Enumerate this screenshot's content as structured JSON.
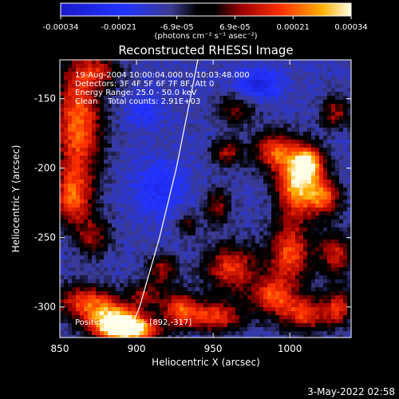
{
  "chart_data": {
    "type": "heatmap",
    "title": "Reconstructed RHESSI Image",
    "xlabel": "Heliocentric X (arcsec)",
    "ylabel": "Heliocentric Y (arcsec)",
    "xlim": [
      850,
      1040
    ],
    "ylim": [
      -322,
      -122
    ],
    "xticks": [
      850,
      900,
      950,
      1000
    ],
    "yticks": [
      -300,
      -250,
      -200,
      -150
    ],
    "colorbar": {
      "ticks": [
        "-0.00034",
        "-0.00021",
        "-6.9e-05",
        "6.9e-05",
        "0.00021",
        "0.00034"
      ],
      "unit_label": "(photons cm⁻² s⁻¹ asec⁻²)",
      "min": -0.00034,
      "max": 0.00034
    },
    "annotations": [
      "19-Aug-2004 10:00:04.000 to 10:03:48.000",
      "Detectors: 3F 4F 5F 6F 7F 8F, Att 0",
      "Energy Range: 25.0 - 50.0 keV",
      "Clean    Total counts: 2.91E+03"
    ],
    "peak_label": "Position of Peak = [892,-317]",
    "peak": [
      892,
      -317
    ],
    "limb_curve": [
      [
        894,
        -322
      ],
      [
        902,
        -300
      ],
      [
        915,
        -250
      ],
      [
        926,
        -200
      ],
      [
        935,
        -150
      ],
      [
        940,
        -122
      ]
    ],
    "sources": [
      {
        "x": 862,
        "y": -168,
        "sx": 11,
        "sy": 32,
        "a": 1.0
      },
      {
        "x": 858,
        "y": -222,
        "sx": 9,
        "sy": 14,
        "a": 0.75
      },
      {
        "x": 872,
        "y": -250,
        "sx": 8,
        "sy": 10,
        "a": 0.55
      },
      {
        "x": 866,
        "y": -296,
        "sx": 14,
        "sy": 9,
        "a": 0.8
      },
      {
        "x": 893,
        "y": -316,
        "sx": 14,
        "sy": 7,
        "a": 1.6
      },
      {
        "x": 884,
        "y": -306,
        "sx": 12,
        "sy": 8,
        "a": 0.8
      },
      {
        "x": 906,
        "y": -292,
        "sx": 8,
        "sy": 7,
        "a": 0.55
      },
      {
        "x": 917,
        "y": -273,
        "sx": 7,
        "sy": 8,
        "a": 0.6
      },
      {
        "x": 928,
        "y": -301,
        "sx": 8,
        "sy": 9,
        "a": 0.75
      },
      {
        "x": 950,
        "y": -307,
        "sx": 14,
        "sy": 8,
        "a": 0.85
      },
      {
        "x": 962,
        "y": -272,
        "sx": 12,
        "sy": 12,
        "a": 0.85
      },
      {
        "x": 953,
        "y": -228,
        "sx": 6,
        "sy": 9,
        "a": 0.6
      },
      {
        "x": 959,
        "y": -189,
        "sx": 7,
        "sy": 7,
        "a": 0.6
      },
      {
        "x": 990,
        "y": -188,
        "sx": 10,
        "sy": 10,
        "a": 0.85
      },
      {
        "x": 1004,
        "y": -212,
        "sx": 9,
        "sy": 16,
        "a": 1.15
      },
      {
        "x": 1013,
        "y": -196,
        "sx": 7,
        "sy": 9,
        "a": 1.0
      },
      {
        "x": 1022,
        "y": -220,
        "sx": 8,
        "sy": 10,
        "a": 0.9
      },
      {
        "x": 1000,
        "y": -262,
        "sx": 10,
        "sy": 16,
        "a": 0.9
      },
      {
        "x": 1030,
        "y": -262,
        "sx": 8,
        "sy": 12,
        "a": 0.7
      },
      {
        "x": 988,
        "y": -292,
        "sx": 10,
        "sy": 9,
        "a": 0.8
      },
      {
        "x": 1010,
        "y": -305,
        "sx": 12,
        "sy": 9,
        "a": 0.85
      },
      {
        "x": 1032,
        "y": -300,
        "sx": 6,
        "sy": 9,
        "a": 0.7
      },
      {
        "x": 965,
        "y": -158,
        "sx": 9,
        "sy": 8,
        "a": 0.5
      },
      {
        "x": 1030,
        "y": -160,
        "sx": 7,
        "sy": 8,
        "a": 0.6
      },
      {
        "x": 876,
        "y": -130,
        "sx": 10,
        "sy": 8,
        "a": 0.55
      },
      {
        "x": 934,
        "y": -240,
        "sx": 5,
        "sy": 6,
        "a": 0.45
      }
    ],
    "negatives": [
      {
        "x": 980,
        "y": -140,
        "sx": 10,
        "sy": 8,
        "a": 0.8
      },
      {
        "x": 915,
        "y": -215,
        "sx": 12,
        "sy": 14,
        "a": 0.6
      },
      {
        "x": 905,
        "y": -160,
        "sx": 8,
        "sy": 8,
        "a": 0.5
      },
      {
        "x": 940,
        "y": -330,
        "sx": 8,
        "sy": 6,
        "a": 0.5
      }
    ]
  },
  "footer_timestamp": "3-May-2022 02:58"
}
